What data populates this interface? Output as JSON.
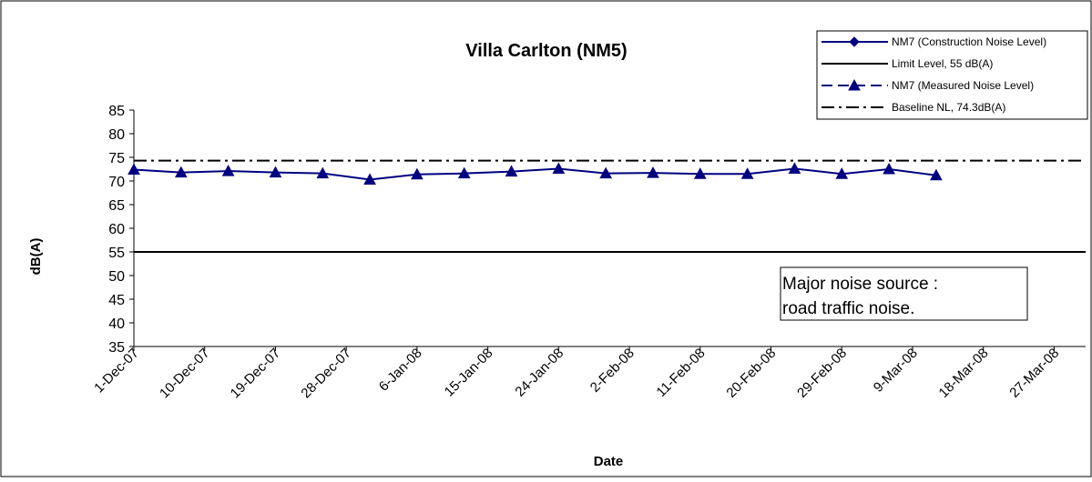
{
  "chart_data": {
    "type": "line",
    "title": "Villa Carlton (NM5)",
    "xlabel": "Date",
    "ylabel": "dB(A)",
    "ylim": [
      35,
      85
    ],
    "yticks": [
      "35",
      "40",
      "45",
      "50",
      "55",
      "60",
      "65",
      "70",
      "75",
      "80",
      "85"
    ],
    "x_range": [
      "2007-12-01",
      "2008-03-31"
    ],
    "x_ticks": [
      {
        "date": "2007-12-01",
        "label": "1-Dec-07"
      },
      {
        "date": "2007-12-10",
        "label": "10-Dec-07"
      },
      {
        "date": "2007-12-19",
        "label": "19-Dec-07"
      },
      {
        "date": "2007-12-28",
        "label": "28-Dec-07"
      },
      {
        "date": "2008-01-06",
        "label": "6-Jan-08"
      },
      {
        "date": "2008-01-15",
        "label": "15-Jan-08"
      },
      {
        "date": "2008-01-24",
        "label": "24-Jan-08"
      },
      {
        "date": "2008-02-02",
        "label": "2-Feb-08"
      },
      {
        "date": "2008-02-11",
        "label": "11-Feb-08"
      },
      {
        "date": "2008-02-20",
        "label": "20-Feb-08"
      },
      {
        "date": "2008-02-29",
        "label": "29-Feb-08"
      },
      {
        "date": "2008-03-09",
        "label": "9-Mar-08"
      },
      {
        "date": "2008-03-18",
        "label": "18-Mar-08"
      },
      {
        "date": "2008-03-27",
        "label": "27-Mar-08"
      }
    ],
    "series": [
      {
        "name": "NM7 (Construction Noise Level)",
        "color": "#000080",
        "marker": "diamond",
        "dash": "solid",
        "points": []
      },
      {
        "name": "Limit Level, 55 dB(A)",
        "color": "#000000",
        "marker": "none",
        "dash": "solid",
        "constant": 55
      },
      {
        "name": "NM7 (Measured Noise Level)",
        "color": "#000080",
        "marker": "triangle",
        "dash": "dash",
        "points": [
          {
            "x": "2007-12-01",
            "y": 72.4
          },
          {
            "x": "2007-12-07",
            "y": 71.8
          },
          {
            "x": "2007-12-13",
            "y": 72.1
          },
          {
            "x": "2007-12-19",
            "y": 71.8
          },
          {
            "x": "2007-12-25",
            "y": 71.6
          },
          {
            "x": "2007-12-31",
            "y": 70.3
          },
          {
            "x": "2008-01-06",
            "y": 71.4
          },
          {
            "x": "2008-01-12",
            "y": 71.6
          },
          {
            "x": "2008-01-18",
            "y": 72.0
          },
          {
            "x": "2008-01-24",
            "y": 72.6
          },
          {
            "x": "2008-01-30",
            "y": 71.6
          },
          {
            "x": "2008-02-05",
            "y": 71.7
          },
          {
            "x": "2008-02-11",
            "y": 71.5
          },
          {
            "x": "2008-02-17",
            "y": 71.5
          },
          {
            "x": "2008-02-23",
            "y": 72.6
          },
          {
            "x": "2008-02-29",
            "y": 71.5
          },
          {
            "x": "2008-03-06",
            "y": 72.5
          },
          {
            "x": "2008-03-12",
            "y": 71.2
          }
        ]
      },
      {
        "name": "Baseline NL, 74.3dB(A)",
        "color": "#000000",
        "marker": "none",
        "dash": "dashdot",
        "constant": 74.3
      }
    ],
    "legend_position": "top-right",
    "annotation": [
      "Major noise source :",
      "road traffic noise."
    ],
    "grid": false
  }
}
